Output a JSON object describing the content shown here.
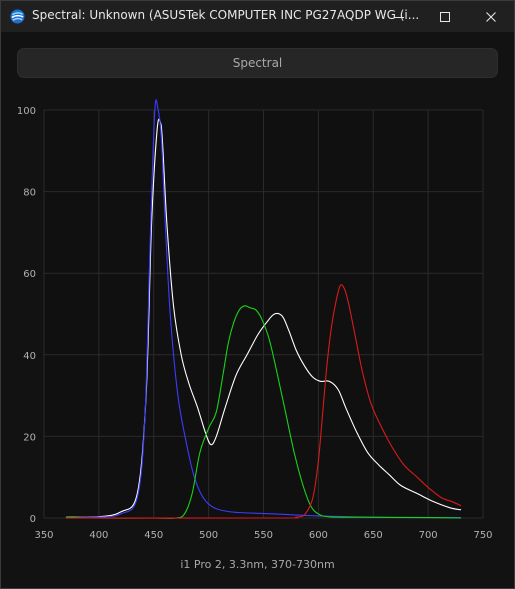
{
  "window": {
    "title": "Spectral: Unknown (ASUSTek COMPUTER INC PG27AQDP WG (i...",
    "icon": "spectral-app-icon"
  },
  "mode_button": {
    "label": "Spectral"
  },
  "caption": "i1 Pro 2, 3.3nm, 370-730nm",
  "chart_data": {
    "type": "line",
    "xlim": [
      350,
      750
    ],
    "ylim": [
      0,
      100
    ],
    "xticks": [
      350,
      400,
      450,
      500,
      550,
      600,
      650,
      700,
      750
    ],
    "yticks": [
      0,
      20,
      40,
      60,
      80,
      100
    ],
    "grid": true,
    "background": "#101010",
    "series": [
      {
        "color": "#ffffff",
        "points": [
          [
            370,
            0.2
          ],
          [
            400,
            0.3
          ],
          [
            420,
            1.5
          ],
          [
            435,
            6
          ],
          [
            443,
            30
          ],
          [
            448,
            72
          ],
          [
            453,
            95
          ],
          [
            456,
            97
          ],
          [
            458,
            92
          ],
          [
            462,
            72
          ],
          [
            468,
            52
          ],
          [
            475,
            40
          ],
          [
            482,
            33
          ],
          [
            490,
            27
          ],
          [
            497,
            21
          ],
          [
            502,
            18
          ],
          [
            507,
            20
          ],
          [
            515,
            27
          ],
          [
            525,
            35
          ],
          [
            535,
            40
          ],
          [
            545,
            45
          ],
          [
            553,
            48
          ],
          [
            560,
            50
          ],
          [
            567,
            49.5
          ],
          [
            573,
            46
          ],
          [
            580,
            41
          ],
          [
            588,
            37
          ],
          [
            595,
            34.5
          ],
          [
            602,
            33.5
          ],
          [
            610,
            33.5
          ],
          [
            618,
            31.5
          ],
          [
            625,
            27
          ],
          [
            635,
            21
          ],
          [
            645,
            16
          ],
          [
            655,
            13
          ],
          [
            665,
            10.5
          ],
          [
            675,
            8
          ],
          [
            690,
            6
          ],
          [
            705,
            4
          ],
          [
            720,
            2.5
          ],
          [
            730,
            2
          ]
        ]
      },
      {
        "color": "#3c3cff",
        "points": [
          [
            370,
            0.1
          ],
          [
            400,
            0.2
          ],
          [
            420,
            1
          ],
          [
            435,
            5
          ],
          [
            442,
            25
          ],
          [
            447,
            70
          ],
          [
            451,
            100
          ],
          [
            454,
            100
          ],
          [
            457,
            93
          ],
          [
            460,
            75
          ],
          [
            465,
            50
          ],
          [
            472,
            30
          ],
          [
            480,
            18
          ],
          [
            487,
            10
          ],
          [
            495,
            5
          ],
          [
            505,
            2.5
          ],
          [
            520,
            1.5
          ],
          [
            540,
            1.2
          ],
          [
            560,
            1
          ],
          [
            600,
            0.5
          ],
          [
            650,
            0.2
          ],
          [
            700,
            0.1
          ],
          [
            730,
            0.1
          ]
        ]
      },
      {
        "color": "#19d219",
        "points": [
          [
            370,
            0.2
          ],
          [
            390,
            0
          ],
          [
            450,
            0
          ],
          [
            470,
            0
          ],
          [
            478,
            1
          ],
          [
            485,
            6
          ],
          [
            492,
            16
          ],
          [
            500,
            22
          ],
          [
            507,
            26
          ],
          [
            513,
            35
          ],
          [
            518,
            43
          ],
          [
            523,
            48
          ],
          [
            528,
            51
          ],
          [
            533,
            52
          ],
          [
            538,
            51.5
          ],
          [
            543,
            51
          ],
          [
            548,
            49
          ],
          [
            555,
            44
          ],
          [
            562,
            36
          ],
          [
            570,
            26
          ],
          [
            578,
            16
          ],
          [
            586,
            8
          ],
          [
            593,
            3
          ],
          [
            600,
            1
          ],
          [
            610,
            0.3
          ],
          [
            640,
            0.2
          ],
          [
            700,
            0.1
          ],
          [
            730,
            0
          ]
        ]
      },
      {
        "color": "#d81b1b",
        "points": [
          [
            370,
            0
          ],
          [
            560,
            0
          ],
          [
            580,
            0.2
          ],
          [
            588,
            1
          ],
          [
            595,
            5
          ],
          [
            600,
            14
          ],
          [
            604,
            26
          ],
          [
            608,
            38
          ],
          [
            612,
            47
          ],
          [
            616,
            53
          ],
          [
            620,
            57
          ],
          [
            624,
            56
          ],
          [
            628,
            52
          ],
          [
            634,
            44
          ],
          [
            640,
            36
          ],
          [
            648,
            28
          ],
          [
            658,
            22
          ],
          [
            668,
            17
          ],
          [
            678,
            13
          ],
          [
            690,
            10
          ],
          [
            700,
            7.5
          ],
          [
            712,
            5
          ],
          [
            722,
            4
          ],
          [
            730,
            3
          ]
        ]
      }
    ]
  }
}
